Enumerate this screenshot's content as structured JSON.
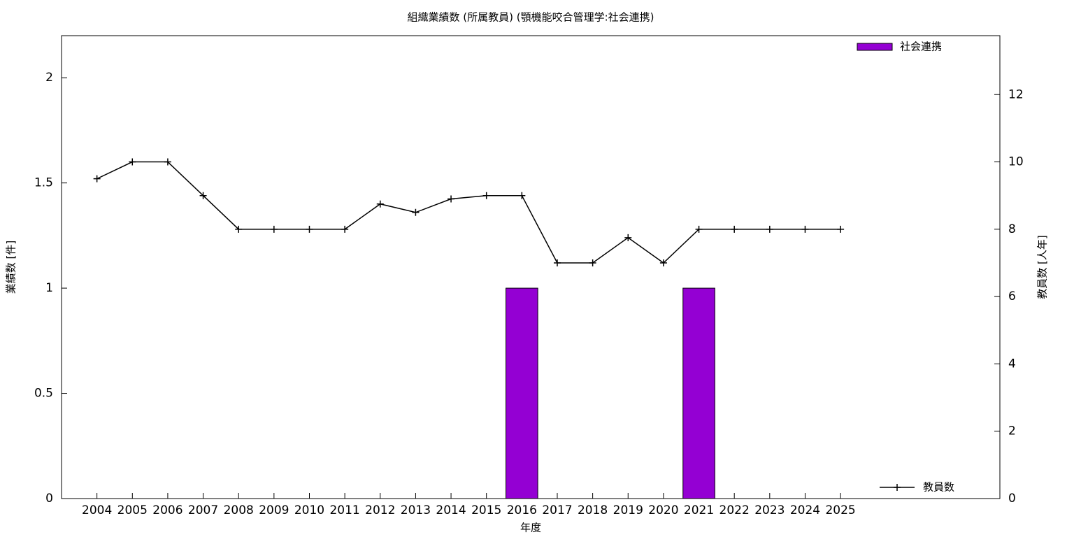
{
  "chart_data": {
    "type": "bar_line",
    "title": "組織業績数 (所属教員) (顎機能咬合管理学:社会連携)",
    "x_label": "年度",
    "y_label": "業績数 [件]",
    "y2_label": "教員数 [人年]",
    "categories": [
      "2004",
      "2005",
      "2006",
      "2007",
      "2008",
      "2009",
      "2010",
      "2011",
      "2012",
      "2013",
      "2014",
      "2015",
      "2016",
      "2017",
      "2018",
      "2019",
      "2020",
      "2021",
      "2022",
      "2023",
      "2024",
      "2025"
    ],
    "series": [
      {
        "name": "社会連携",
        "type": "bar",
        "color": "#9400d3",
        "axis": "y",
        "values": [
          0,
          0,
          0,
          0,
          0,
          0,
          0,
          0,
          0,
          0,
          0,
          0,
          1,
          0,
          0,
          0,
          0,
          1,
          0,
          0,
          0,
          0
        ]
      },
      {
        "name": "教員数",
        "type": "line",
        "color": "#000000",
        "axis": "y2",
        "values": [
          9.5,
          10,
          10,
          9,
          8,
          8,
          8,
          8,
          8.75,
          8.5,
          8.9,
          9,
          9,
          7,
          7,
          7.75,
          7,
          8,
          8,
          8,
          8,
          8
        ]
      }
    ],
    "ylim": [
      0,
      2.2
    ],
    "yticks": [
      0,
      0.5,
      1,
      1.5,
      2
    ],
    "y2lim": [
      0,
      13.75
    ],
    "y2ticks": [
      0,
      2,
      4,
      6,
      8,
      10,
      12
    ],
    "grid": false
  }
}
